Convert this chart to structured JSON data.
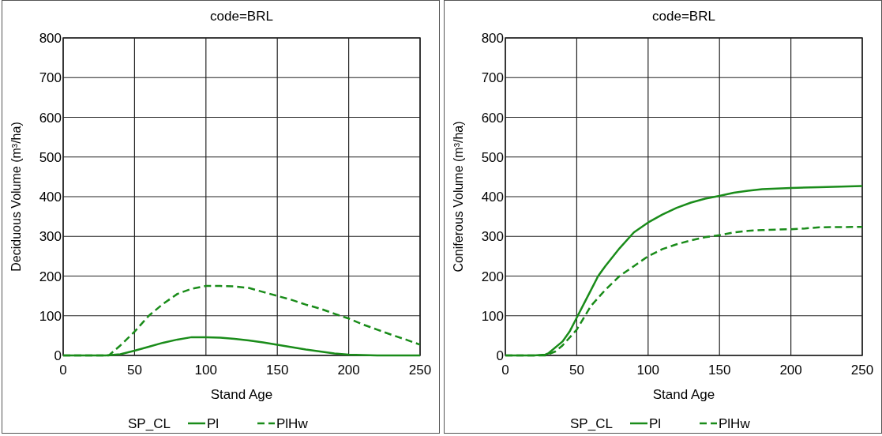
{
  "chart_data": [
    {
      "type": "line",
      "title": "code=BRL",
      "xlabel": "Stand Age",
      "ylabel": "Deciduous Volume (m³/ha)",
      "legend_title": "SP_CL",
      "legend": "bottom",
      "grid": true,
      "xlim": [
        0,
        250
      ],
      "xticks": [
        0,
        50,
        100,
        150,
        200,
        250
      ],
      "ylim": [
        0,
        800
      ],
      "yticks": [
        0,
        100,
        200,
        300,
        400,
        500,
        600,
        700,
        800
      ],
      "series": [
        {
          "name": "Pl",
          "color": "#1a8c1a",
          "line_style": "solid",
          "x": [
            0,
            20,
            30,
            40,
            50,
            60,
            70,
            80,
            90,
            100,
            110,
            120,
            130,
            140,
            150,
            160,
            170,
            180,
            190,
            200,
            210,
            220,
            230,
            250
          ],
          "values": [
            0,
            0,
            0,
            3,
            12,
            22,
            32,
            40,
            46,
            46,
            45,
            42,
            38,
            33,
            27,
            21,
            15,
            10,
            5,
            2,
            1,
            0,
            0,
            0
          ]
        },
        {
          "name": "PlHw",
          "color": "#1a8c1a",
          "line_style": "dashed",
          "x": [
            0,
            25,
            32,
            40,
            50,
            60,
            70,
            80,
            90,
            100,
            110,
            120,
            130,
            140,
            150,
            160,
            170,
            180,
            190,
            200,
            210,
            220,
            230,
            240,
            250
          ],
          "values": [
            0,
            0,
            0,
            25,
            60,
            100,
            130,
            155,
            168,
            175,
            175,
            174,
            170,
            160,
            150,
            140,
            128,
            118,
            105,
            93,
            78,
            65,
            52,
            40,
            27
          ]
        }
      ]
    },
    {
      "type": "line",
      "title": "code=BRL",
      "xlabel": "Stand Age",
      "ylabel": "Coniferous Volume (m³/ha)",
      "legend_title": "SP_CL",
      "legend": "bottom",
      "grid": true,
      "xlim": [
        0,
        250
      ],
      "xticks": [
        0,
        50,
        100,
        150,
        200,
        250
      ],
      "ylim": [
        0,
        800
      ],
      "yticks": [
        0,
        100,
        200,
        300,
        400,
        500,
        600,
        700,
        800
      ],
      "series": [
        {
          "name": "Pl",
          "color": "#1a8c1a",
          "line_style": "solid",
          "x": [
            0,
            20,
            28,
            30,
            40,
            45,
            50,
            55,
            60,
            65,
            70,
            80,
            90,
            100,
            110,
            120,
            130,
            140,
            150,
            160,
            170,
            180,
            200,
            220,
            250
          ],
          "values": [
            0,
            0,
            2,
            5,
            35,
            60,
            95,
            130,
            165,
            200,
            225,
            270,
            310,
            335,
            355,
            372,
            385,
            395,
            402,
            410,
            415,
            419,
            422,
            424,
            427
          ]
        },
        {
          "name": "PlHw",
          "color": "#1a8c1a",
          "line_style": "dashed",
          "x": [
            0,
            28,
            35,
            40,
            50,
            55,
            60,
            70,
            80,
            90,
            100,
            110,
            120,
            130,
            140,
            150,
            160,
            170,
            180,
            200,
            210,
            220,
            250
          ],
          "values": [
            0,
            0,
            10,
            25,
            65,
            95,
            125,
            165,
            200,
            225,
            250,
            268,
            280,
            290,
            298,
            303,
            310,
            314,
            316,
            318,
            320,
            323,
            324
          ]
        }
      ]
    }
  ]
}
